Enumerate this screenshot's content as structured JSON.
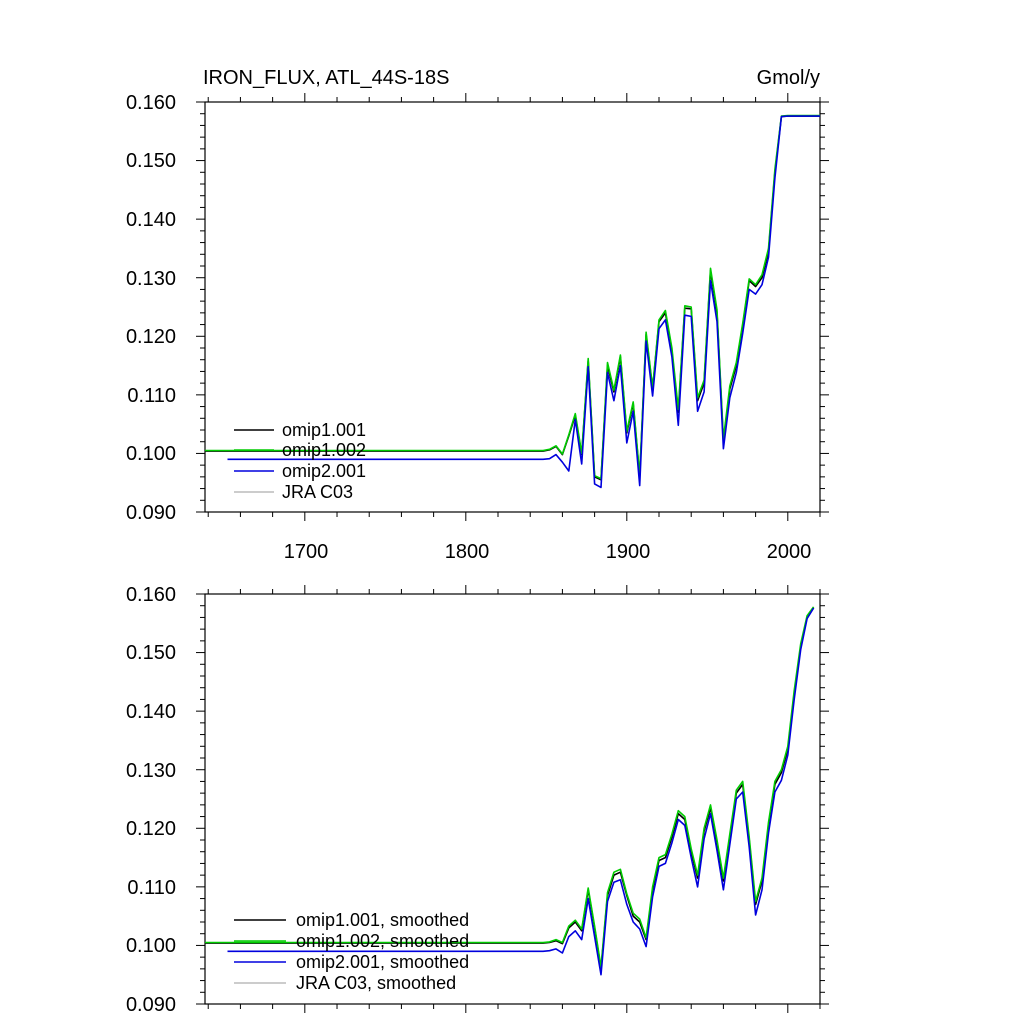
{
  "header": {
    "title": "IRON_FLUX, ATL_44S-18S",
    "units": "Gmol/y"
  },
  "x_ticks": [
    "1700",
    "1800",
    "1900",
    "2000"
  ],
  "y_ticks": [
    "0.090",
    "0.100",
    "0.110",
    "0.120",
    "0.130",
    "0.140",
    "0.150",
    "0.160"
  ],
  "chart_data": [
    {
      "type": "line",
      "title": "IRON_FLUX, ATL_44S-18S",
      "ylabel": "Gmol/y",
      "xlim": [
        1638,
        2020
      ],
      "ylim": [
        0.09,
        0.16
      ],
      "x_tick_values": [
        1700,
        1800,
        1900,
        2000
      ],
      "y_tick_values": [
        0.09,
        0.1,
        0.11,
        0.12,
        0.13,
        0.14,
        0.15,
        0.16
      ],
      "legend_position": "bottom-left",
      "series": [
        {
          "name": "omip1.001",
          "color": "#000000",
          "x": [
            1638,
            1848,
            1852,
            1856,
            1860,
            1864,
            1868,
            1872,
            1876,
            1880,
            1884,
            1888,
            1892,
            1896,
            1900,
            1904,
            1908,
            1912,
            1916,
            1920,
            1924,
            1928,
            1932,
            1936,
            1940,
            1944,
            1948,
            1952,
            1956,
            1960,
            1964,
            1968,
            1972,
            1976,
            1980,
            1984,
            1988,
            1992,
            1996,
            2000,
            2004,
            2008,
            2012,
            2016,
            2020
          ],
          "y": [
            0.1004,
            0.1004,
            0.1006,
            0.1012,
            0.0998,
            0.103,
            0.1065,
            0.0998,
            0.1158,
            0.096,
            0.0955,
            0.115,
            0.1105,
            0.1165,
            0.1035,
            0.1085,
            0.096,
            0.1203,
            0.111,
            0.1225,
            0.124,
            0.1175,
            0.107,
            0.1248,
            0.1247,
            0.109,
            0.112,
            0.1312,
            0.124,
            0.102,
            0.111,
            0.115,
            0.1218,
            0.1295,
            0.1285,
            0.13,
            0.1345,
            0.148,
            0.1575,
            0.1576,
            0.1576,
            0.1576,
            0.1576,
            0.1576,
            0.1576
          ]
        },
        {
          "name": "omip1.002",
          "color": "#00cc00",
          "x": [
            1638,
            1848,
            1852,
            1856,
            1860,
            1864,
            1868,
            1872,
            1876,
            1880,
            1884,
            1888,
            1892,
            1896,
            1900,
            1904,
            1908,
            1912,
            1916,
            1920,
            1924,
            1928,
            1932,
            1936,
            1940,
            1944,
            1948,
            1952,
            1956,
            1960,
            1964,
            1968,
            1972,
            1976,
            1980,
            1984,
            1988,
            1992,
            1996,
            2000,
            2004,
            2008,
            2012,
            2016,
            2020
          ],
          "y": [
            0.1005,
            0.1005,
            0.1007,
            0.1013,
            0.0999,
            0.1032,
            0.1068,
            0.1,
            0.1162,
            0.0962,
            0.0957,
            0.1155,
            0.1108,
            0.1168,
            0.1038,
            0.1088,
            0.0962,
            0.1207,
            0.1112,
            0.1228,
            0.1244,
            0.118,
            0.1075,
            0.1252,
            0.125,
            0.1095,
            0.1125,
            0.1316,
            0.1245,
            0.1025,
            0.1115,
            0.1155,
            0.1222,
            0.1298,
            0.1288,
            0.1305,
            0.135,
            0.1485,
            0.1576,
            0.1577,
            0.1577,
            0.1577,
            0.1577,
            0.1577,
            0.1577
          ]
        },
        {
          "name": "omip2.001",
          "color": "#0000dd",
          "x": [
            1652,
            1848,
            1852,
            1856,
            1860,
            1864,
            1868,
            1872,
            1876,
            1880,
            1884,
            1888,
            1892,
            1896,
            1900,
            1904,
            1908,
            1912,
            1916,
            1920,
            1924,
            1928,
            1932,
            1936,
            1940,
            1944,
            1948,
            1952,
            1956,
            1960,
            1964,
            1968,
            1972,
            1976,
            1980,
            1984,
            1988,
            1992,
            1996,
            2000,
            2004,
            2008,
            2012,
            2016,
            2020
          ],
          "y": [
            0.099,
            0.099,
            0.0991,
            0.0998,
            0.0985,
            0.097,
            0.1058,
            0.0982,
            0.1148,
            0.0948,
            0.0942,
            0.1138,
            0.109,
            0.115,
            0.1018,
            0.1072,
            0.0945,
            0.1192,
            0.1098,
            0.1213,
            0.1228,
            0.1165,
            0.1048,
            0.1236,
            0.1234,
            0.1072,
            0.1105,
            0.1295,
            0.1225,
            0.1008,
            0.1095,
            0.1138,
            0.1205,
            0.128,
            0.1272,
            0.1288,
            0.1335,
            0.147,
            0.1575,
            0.1576,
            0.1576,
            0.1576,
            0.1576,
            0.1576,
            0.1576
          ]
        },
        {
          "name": "JRA C03",
          "color": "#bbbbbb",
          "x": [],
          "y": []
        }
      ]
    },
    {
      "type": "line",
      "title": "",
      "ylabel": "",
      "xlim": [
        1638,
        2020
      ],
      "ylim": [
        0.09,
        0.16
      ],
      "x_tick_values": [
        1700,
        1800,
        1900,
        2000
      ],
      "y_tick_values": [
        0.09,
        0.1,
        0.11,
        0.12,
        0.13,
        0.14,
        0.15,
        0.16
      ],
      "legend_position": "bottom-left",
      "series": [
        {
          "name": "omip1.001, smoothed",
          "color": "#000000",
          "x": [
            1638,
            1848,
            1852,
            1856,
            1860,
            1864,
            1868,
            1872,
            1876,
            1880,
            1884,
            1888,
            1892,
            1896,
            1900,
            1904,
            1908,
            1912,
            1916,
            1920,
            1924,
            1928,
            1932,
            1936,
            1940,
            1944,
            1948,
            1952,
            1956,
            1960,
            1964,
            1968,
            1972,
            1976,
            1980,
            1984,
            1988,
            1992,
            1996,
            2000,
            2004,
            2008,
            2012,
            2016
          ],
          "y": [
            0.1004,
            0.1004,
            0.1005,
            0.1008,
            0.1003,
            0.103,
            0.104,
            0.1025,
            0.1095,
            0.103,
            0.096,
            0.1085,
            0.112,
            0.1125,
            0.1085,
            0.105,
            0.104,
            0.101,
            0.1095,
            0.1145,
            0.115,
            0.1185,
            0.1225,
            0.1215,
            0.116,
            0.1115,
            0.1195,
            0.1235,
            0.1175,
            0.111,
            0.1185,
            0.126,
            0.1275,
            0.118,
            0.107,
            0.111,
            0.1205,
            0.1275,
            0.1295,
            0.1335,
            0.143,
            0.151,
            0.156,
            0.1577
          ]
        },
        {
          "name": "omip1.002, smoothed",
          "color": "#00cc00",
          "x": [
            1638,
            1848,
            1852,
            1856,
            1860,
            1864,
            1868,
            1872,
            1876,
            1880,
            1884,
            1888,
            1892,
            1896,
            1900,
            1904,
            1908,
            1912,
            1916,
            1920,
            1924,
            1928,
            1932,
            1936,
            1940,
            1944,
            1948,
            1952,
            1956,
            1960,
            1964,
            1968,
            1972,
            1976,
            1980,
            1984,
            1988,
            1992,
            1996,
            2000,
            2004,
            2008,
            2012,
            2016
          ],
          "y": [
            0.1005,
            0.1005,
            0.1006,
            0.101,
            0.1005,
            0.1033,
            0.1043,
            0.1028,
            0.1098,
            0.1033,
            0.0963,
            0.109,
            0.1125,
            0.113,
            0.1088,
            0.1055,
            0.1045,
            0.1013,
            0.11,
            0.115,
            0.1155,
            0.119,
            0.123,
            0.122,
            0.1165,
            0.112,
            0.12,
            0.124,
            0.118,
            0.1115,
            0.119,
            0.1265,
            0.128,
            0.1185,
            0.1075,
            0.1115,
            0.121,
            0.128,
            0.13,
            0.134,
            0.1435,
            0.1515,
            0.1563,
            0.1578
          ]
        },
        {
          "name": "omip2.001, smoothed",
          "color": "#0000dd",
          "x": [
            1652,
            1848,
            1852,
            1856,
            1860,
            1864,
            1868,
            1872,
            1876,
            1880,
            1884,
            1888,
            1892,
            1896,
            1900,
            1904,
            1908,
            1912,
            1916,
            1920,
            1924,
            1928,
            1932,
            1936,
            1940,
            1944,
            1948,
            1952,
            1956,
            1960,
            1964,
            1968,
            1972,
            1976,
            1980,
            1984,
            1988,
            1992,
            1996,
            2000,
            2004,
            2008,
            2012,
            2016
          ],
          "y": [
            0.099,
            0.099,
            0.0991,
            0.0994,
            0.0987,
            0.1015,
            0.1025,
            0.101,
            0.108,
            0.1015,
            0.095,
            0.1075,
            0.1108,
            0.1112,
            0.107,
            0.104,
            0.1028,
            0.0998,
            0.1083,
            0.1135,
            0.114,
            0.1175,
            0.1215,
            0.1205,
            0.115,
            0.11,
            0.1182,
            0.1225,
            0.1162,
            0.1095,
            0.1172,
            0.125,
            0.1262,
            0.1168,
            0.1052,
            0.1095,
            0.1192,
            0.1262,
            0.1282,
            0.1325,
            0.142,
            0.1505,
            0.1558,
            0.1576
          ]
        },
        {
          "name": "JRA C03, smoothed",
          "color": "#bbbbbb",
          "x": [],
          "y": []
        }
      ]
    }
  ]
}
